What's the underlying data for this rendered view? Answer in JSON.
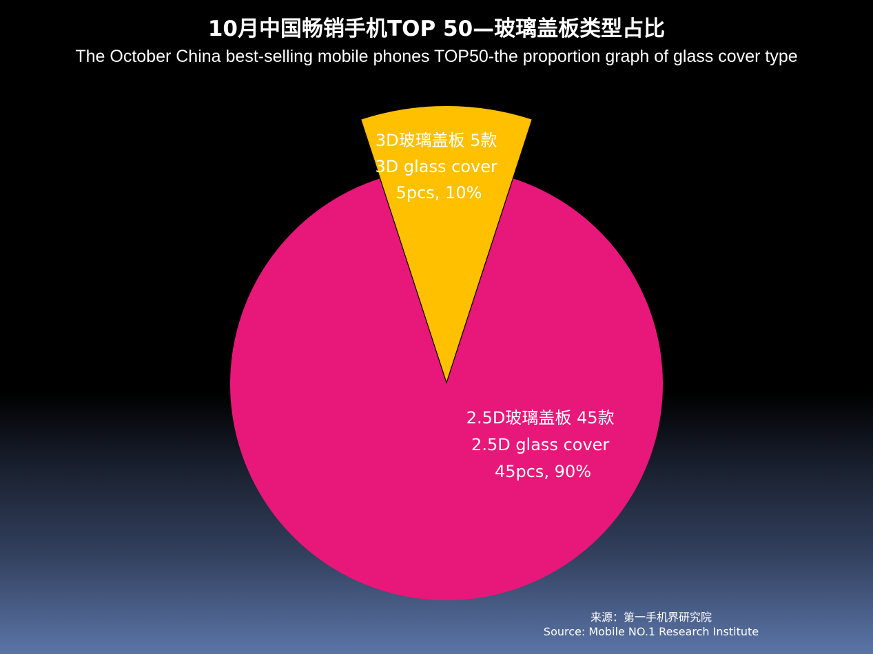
{
  "title": "10月中国畅销手机TOP 50—玻璃盖板类型占比",
  "subtitle": "The October China best-selling mobile phones TOP50-the proportion graph of glass cover type",
  "source": {
    "line1": "来源：第一手机界研究院",
    "line2": "Source: Mobile NO.1 Research Institute"
  },
  "colors": {
    "slice_2_5d": "#e8177a",
    "slice_3d": "#ffc000",
    "text": "#ffffff"
  },
  "chart_data": {
    "type": "pie",
    "title": "10月中国畅销手机TOP 50—玻璃盖板类型占比",
    "subtitle": "The October China best-selling mobile phones TOP50-the proportion graph of glass cover type",
    "exploded": "3D",
    "slices": [
      {
        "key": "3D",
        "value": 5,
        "percent": 10,
        "color": "#ffc000",
        "label_lines": [
          "3D玻璃盖板 5款",
          "3D glass cover",
          "5pcs,  10%"
        ]
      },
      {
        "key": "2.5D",
        "value": 45,
        "percent": 90,
        "color": "#e8177a",
        "label_lines": [
          "2.5D玻璃盖板 45款",
          "2.5D glass cover",
          "45pcs, 90%"
        ]
      }
    ]
  }
}
